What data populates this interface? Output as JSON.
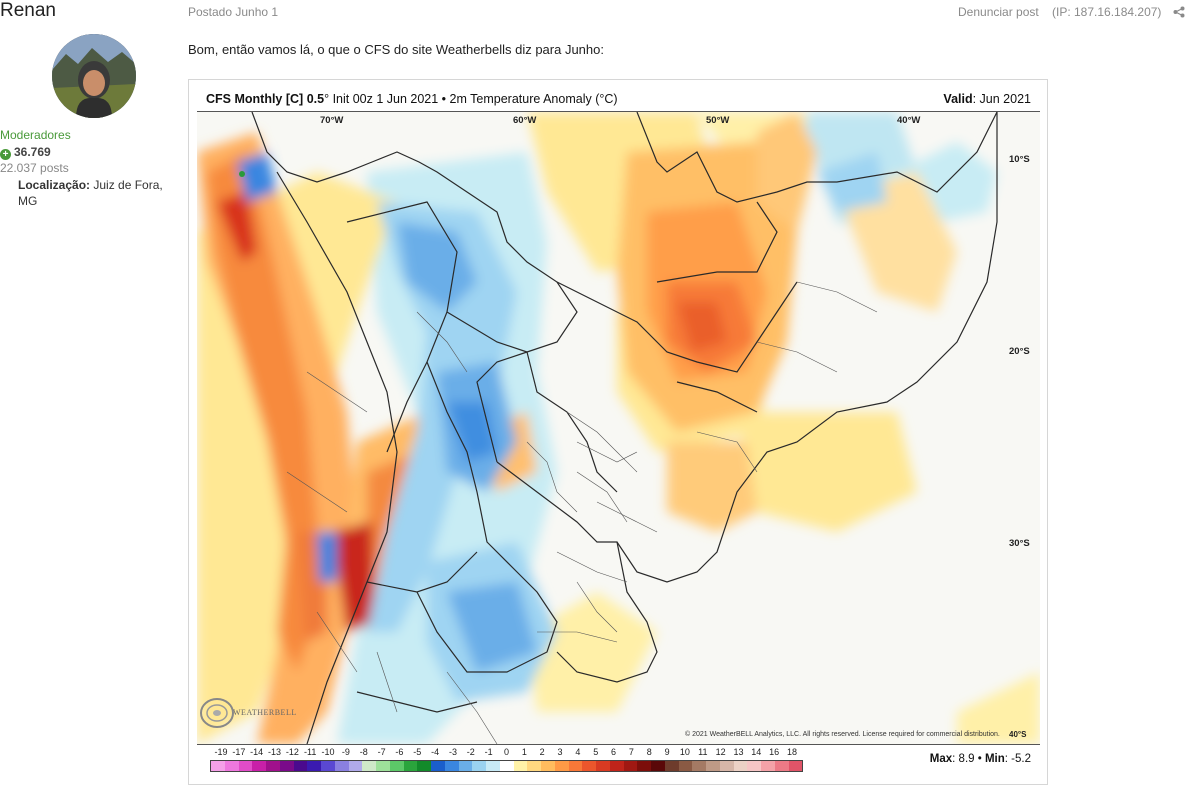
{
  "author": {
    "name": "Renan",
    "group": "Moderadores",
    "reputation": "36.769",
    "posts": "22.037 posts",
    "location_label": "Localização:",
    "location_value": "Juiz de Fora, MG"
  },
  "post": {
    "date": "Postado Junho 1",
    "report": "Denunciar post",
    "ip": "(IP: 187.16.184.207)",
    "text": "Bom, então vamos lá, o que o CFS do site Weatherbells diz para Junho:"
  },
  "figure": {
    "title_bold": "CFS Monthly [C]",
    "title_res_bold": "0.5",
    "title_rest": "° Init 00z 1 Jun 2021 • 2m Temperature Anomaly (°C)",
    "valid_label": "Valid",
    "valid_value": ": Jun 2021",
    "lon_labels": [
      "70°W",
      "60°W",
      "50°W",
      "40°W"
    ],
    "lat_labels": [
      "10°S",
      "20°S",
      "30°S",
      "40°S"
    ],
    "copyright": "© 2021 WeatherBELL Analytics, LLC. All rights reserved. License required for commercial distribution.",
    "logo_text": "WEATHERBELL",
    "max_label": "Max",
    "max_value": ": 8.9",
    "sep": " • ",
    "min_label": "Min",
    "min_value": ": -5.2",
    "scale_labels": [
      "-19",
      "-17",
      "-14",
      "-13",
      "-12",
      "-11",
      "-10",
      "-9",
      "-8",
      "-7",
      "-6",
      "-5",
      "-4",
      "-3",
      "-2",
      "-1",
      "0",
      "1",
      "2",
      "3",
      "4",
      "5",
      "6",
      "7",
      "8",
      "9",
      "10",
      "11",
      "12",
      "13",
      "14",
      "16",
      "18"
    ],
    "scale_colors": [
      "#f5a0e8",
      "#ee78de",
      "#e14cc8",
      "#c820a8",
      "#a0108c",
      "#7a0a8a",
      "#4a0a8e",
      "#3a1ab0",
      "#5a48d2",
      "#8a80e0",
      "#b0aaea",
      "#cfe8c8",
      "#9ee09a",
      "#5cc868",
      "#2aa43c",
      "#128a2a",
      "#1a5ecc",
      "#3a86e0",
      "#6aaee8",
      "#9ad2f0",
      "#c8eaf6",
      "#ffffff",
      "#fff2a8",
      "#ffd880",
      "#ffbc5e",
      "#ff9a46",
      "#f87838",
      "#ec562c",
      "#d83a22",
      "#c0241a",
      "#a01812",
      "#7c0e0a",
      "#5a0808",
      "#6e3c2c",
      "#8a5a44",
      "#a47a64",
      "#be9a86",
      "#d6b6a8",
      "#ecd2c6",
      "#f6c6c6",
      "#f4a2a8",
      "#ec7a86",
      "#e05468"
    ]
  }
}
